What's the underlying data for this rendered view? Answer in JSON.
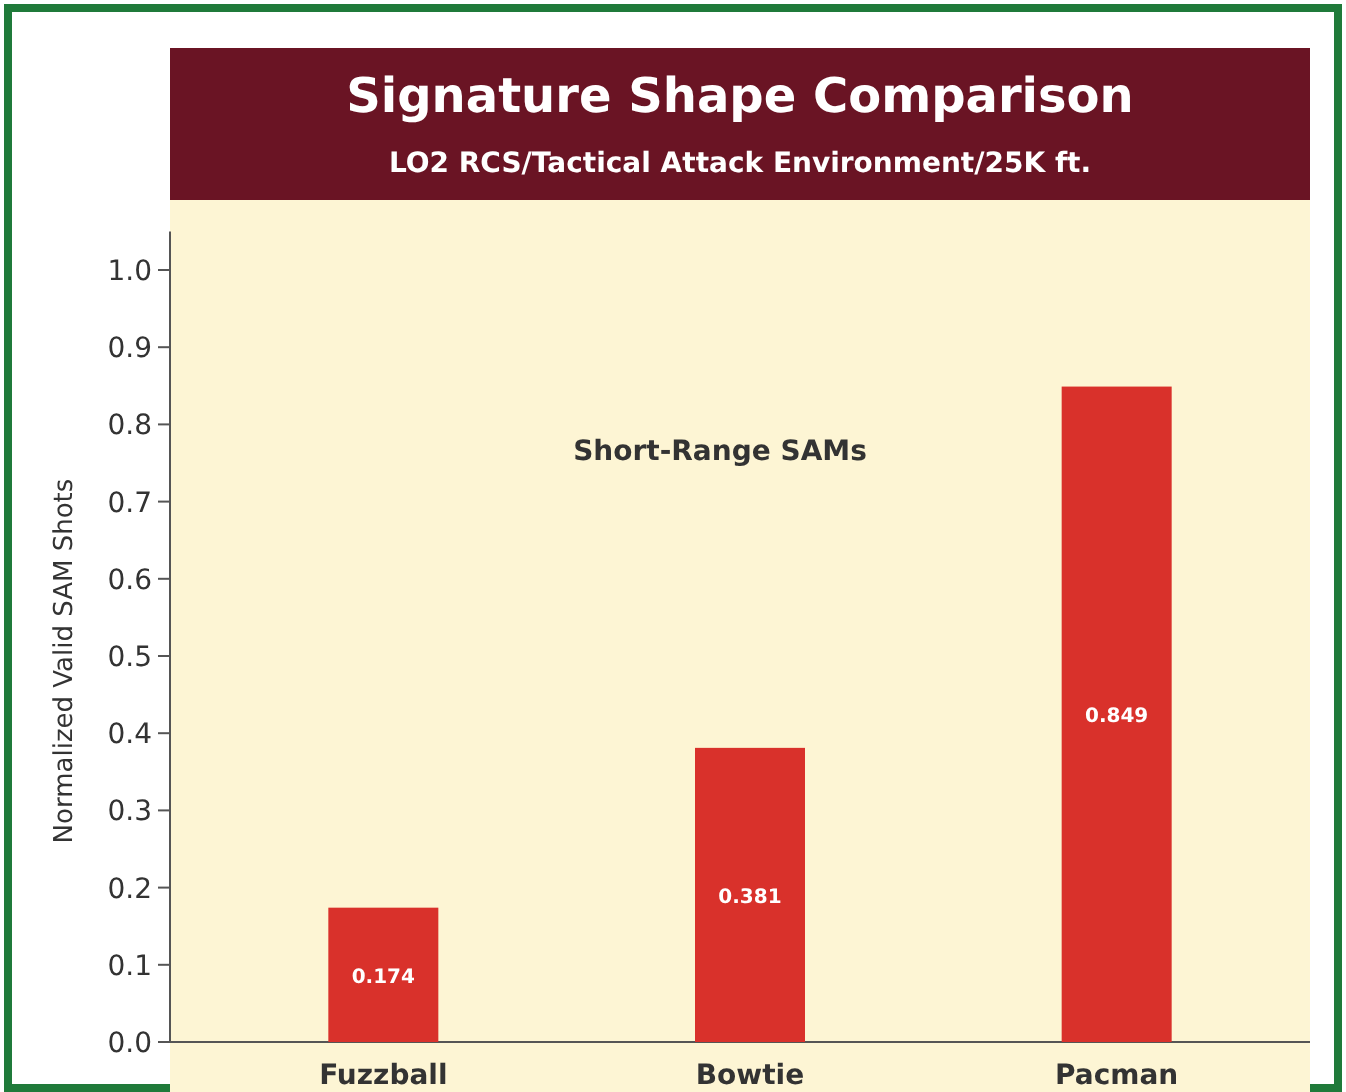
{
  "chart_data": {
    "type": "bar",
    "title": "Signature Shape Comparison",
    "subtitle": "LO2 RCS/Tactical Attack Environment/25K ft.",
    "ylabel": "Normalized Valid SAM Shots",
    "annotations": [
      "Short-Range SAMs"
    ],
    "categories": [
      "Fuzzball",
      "Bowtie",
      "Pacman"
    ],
    "values": [
      0.174,
      0.381,
      0.849
    ],
    "color": "#d9312b",
    "data_labels": true,
    "ylim": [
      0,
      1.05
    ],
    "yticks": [
      {
        "value": 0,
        "label": "0.0"
      },
      0.1,
      0.2,
      0.3,
      0.4,
      0.5,
      0.6,
      0.7,
      0.8,
      0.9,
      {
        "value": 1,
        "label": "1.0"
      }
    ],
    "grid": false
  }
}
